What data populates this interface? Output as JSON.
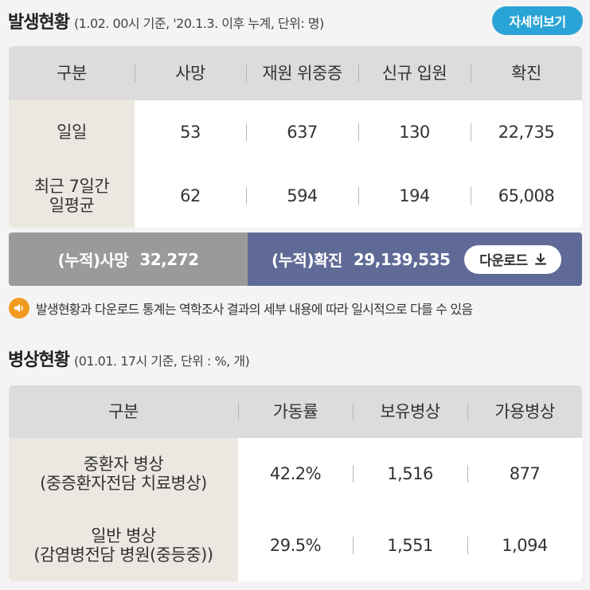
{
  "occurrence": {
    "title": "발생현황",
    "subtitle": "(1.02. 00시 기준, '20.1.3. 이후 누계, 단위: 명)",
    "detail_button": "자세히보기",
    "headers": [
      "구분",
      "사망",
      "재원 위중증",
      "신규 입원",
      "확진"
    ],
    "rows": [
      {
        "label": "일일",
        "values": [
          "53",
          "637",
          "130",
          "22,735"
        ]
      },
      {
        "label_line1": "최근 7일간",
        "label_line2": "일평균",
        "values": [
          "62",
          "594",
          "194",
          "65,008"
        ]
      }
    ],
    "cumulative": {
      "death_label": "(누적)사망",
      "death_value": "32,272",
      "confirmed_label": "(누적)확진",
      "confirmed_value": "29,139,535",
      "download_label": "다운로드"
    },
    "notice": "발생현황과 다운로드 통계는 역학조사 결과의 세부 내용에 따라 일시적으로 다를 수 있음"
  },
  "beds": {
    "title": "병상현황",
    "subtitle": "(01.01. 17시 기준, 단위 : %, 개)",
    "headers": [
      "구분",
      "가동률",
      "보유병상",
      "가용병상"
    ],
    "rows": [
      {
        "label_line1": "중환자 병상",
        "label_line2": "(중증환자전담 치료병상)",
        "values": [
          "42.2%",
          "1,516",
          "877"
        ]
      },
      {
        "label_line1": "일반 병상",
        "label_line2": "(감염병전담 병원(중등중))",
        "values": [
          "29.5%",
          "1,551",
          "1,094"
        ]
      }
    ]
  },
  "colors": {
    "accent": "#2aa4d6",
    "cumulative_death_bg": "#9a9a9a",
    "cumulative_confirmed_bg": "#5f6a96",
    "notice_icon": "#f29a1f"
  }
}
